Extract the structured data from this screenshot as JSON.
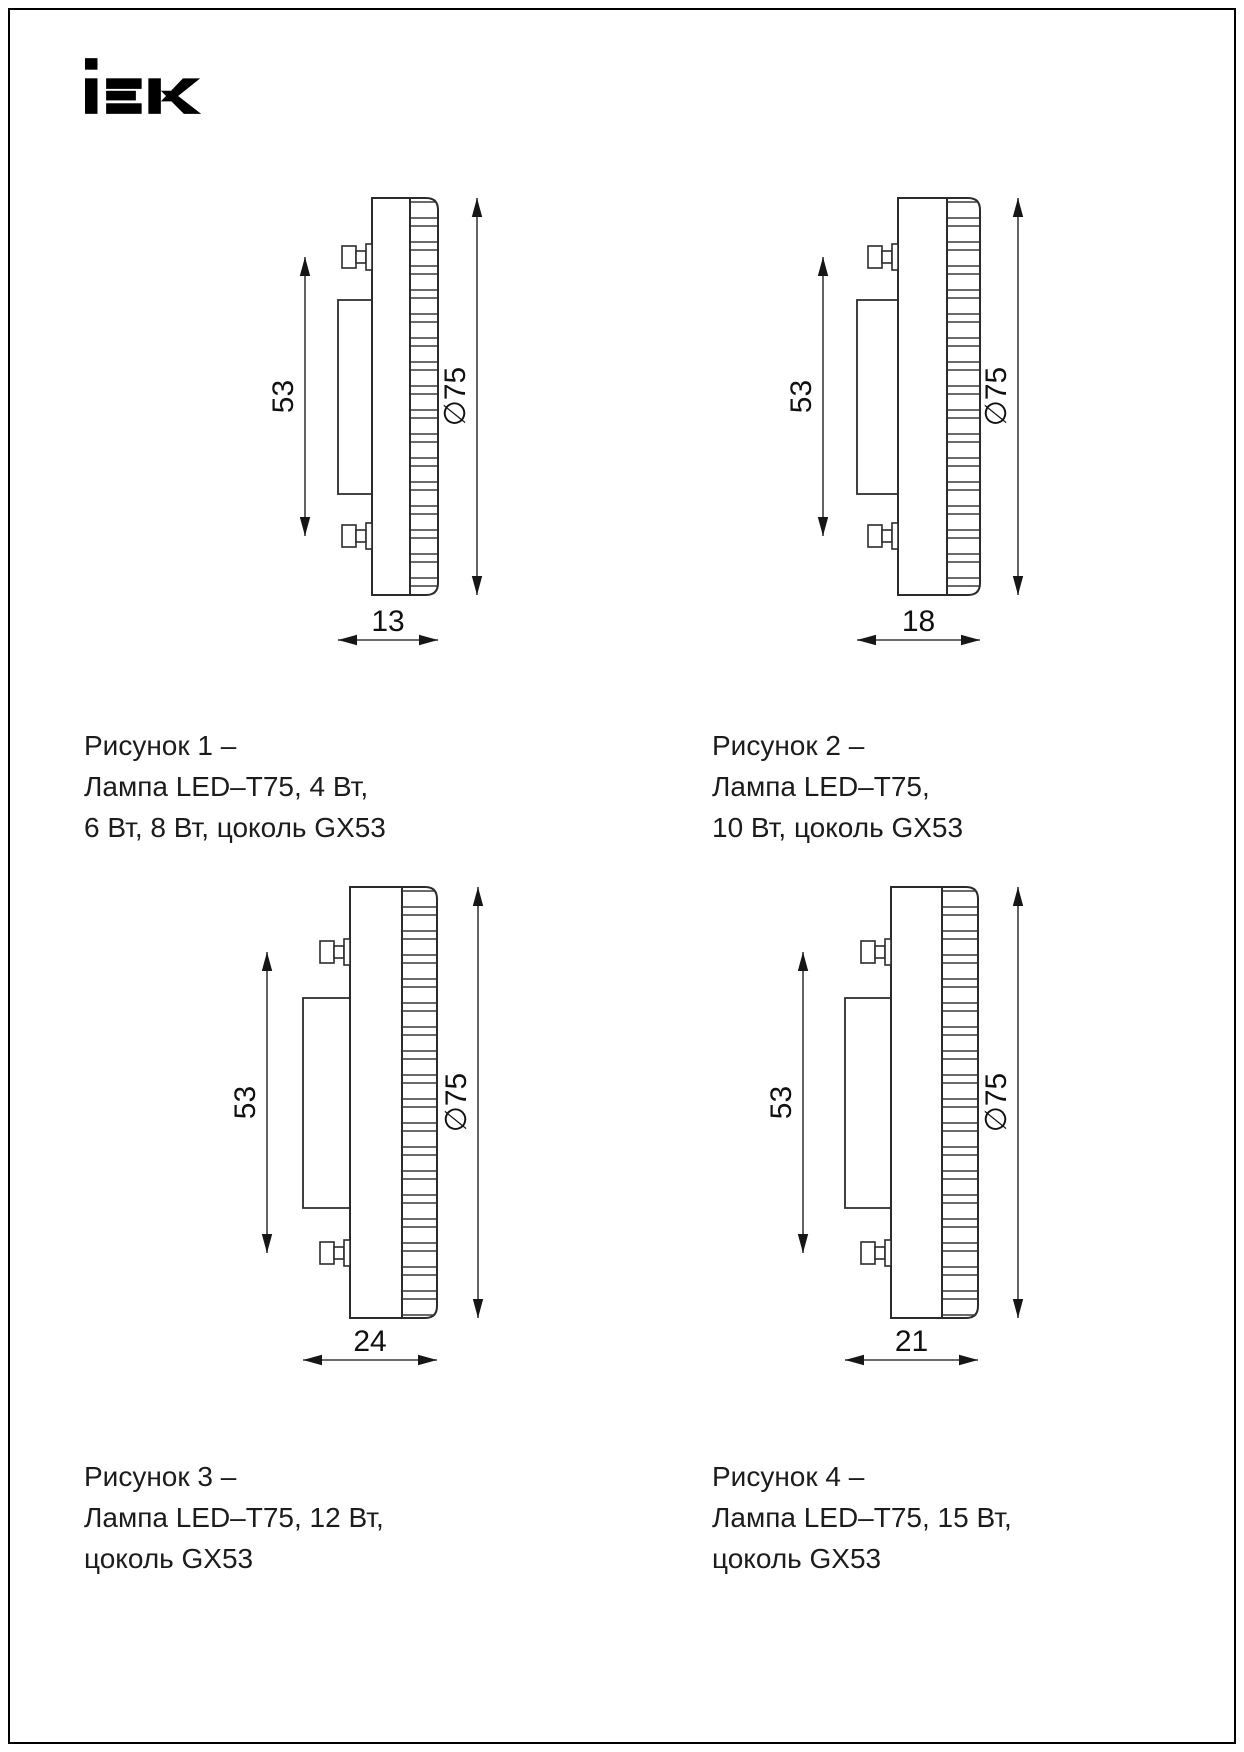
{
  "page": {
    "background": "#ffffff",
    "border_color": "#000000"
  },
  "logo": {
    "brand": "iEK",
    "color": "#000000"
  },
  "drawing_colors": {
    "outline": "#2b2b2b",
    "thin_line": "#8e8e8e",
    "dim_line": "#3c3c3c",
    "text": "#111111"
  },
  "figures": [
    {
      "name": "figure-1",
      "dims": {
        "pin_spacing": "53",
        "diameter": "∅75",
        "height": "13"
      },
      "caption_lines": [
        "Рисунок 1 –",
        "Лампа LED–T75, 4 Вт,",
        "6 Вт, 8 Вт, цоколь GX53"
      ]
    },
    {
      "name": "figure-2",
      "dims": {
        "pin_spacing": "53",
        "diameter": "∅75",
        "height": "18"
      },
      "caption_lines": [
        "Рисунок 2 –",
        "Лампа LED–T75,",
        "10 Вт, цоколь GX53"
      ]
    },
    {
      "name": "figure-3",
      "dims": {
        "pin_spacing": "53",
        "diameter": "∅75",
        "height": "24"
      },
      "caption_lines": [
        "Рисунок 3 –",
        "Лампа LED–T75, 12 Вт,",
        "цоколь GX53"
      ]
    },
    {
      "name": "figure-4",
      "dims": {
        "pin_spacing": "53",
        "diameter": "∅75",
        "height": "21"
      },
      "caption_lines": [
        "Рисунок 4 –",
        "Лампа LED–T75, 15 Вт,",
        "цоколь GX53"
      ]
    }
  ]
}
